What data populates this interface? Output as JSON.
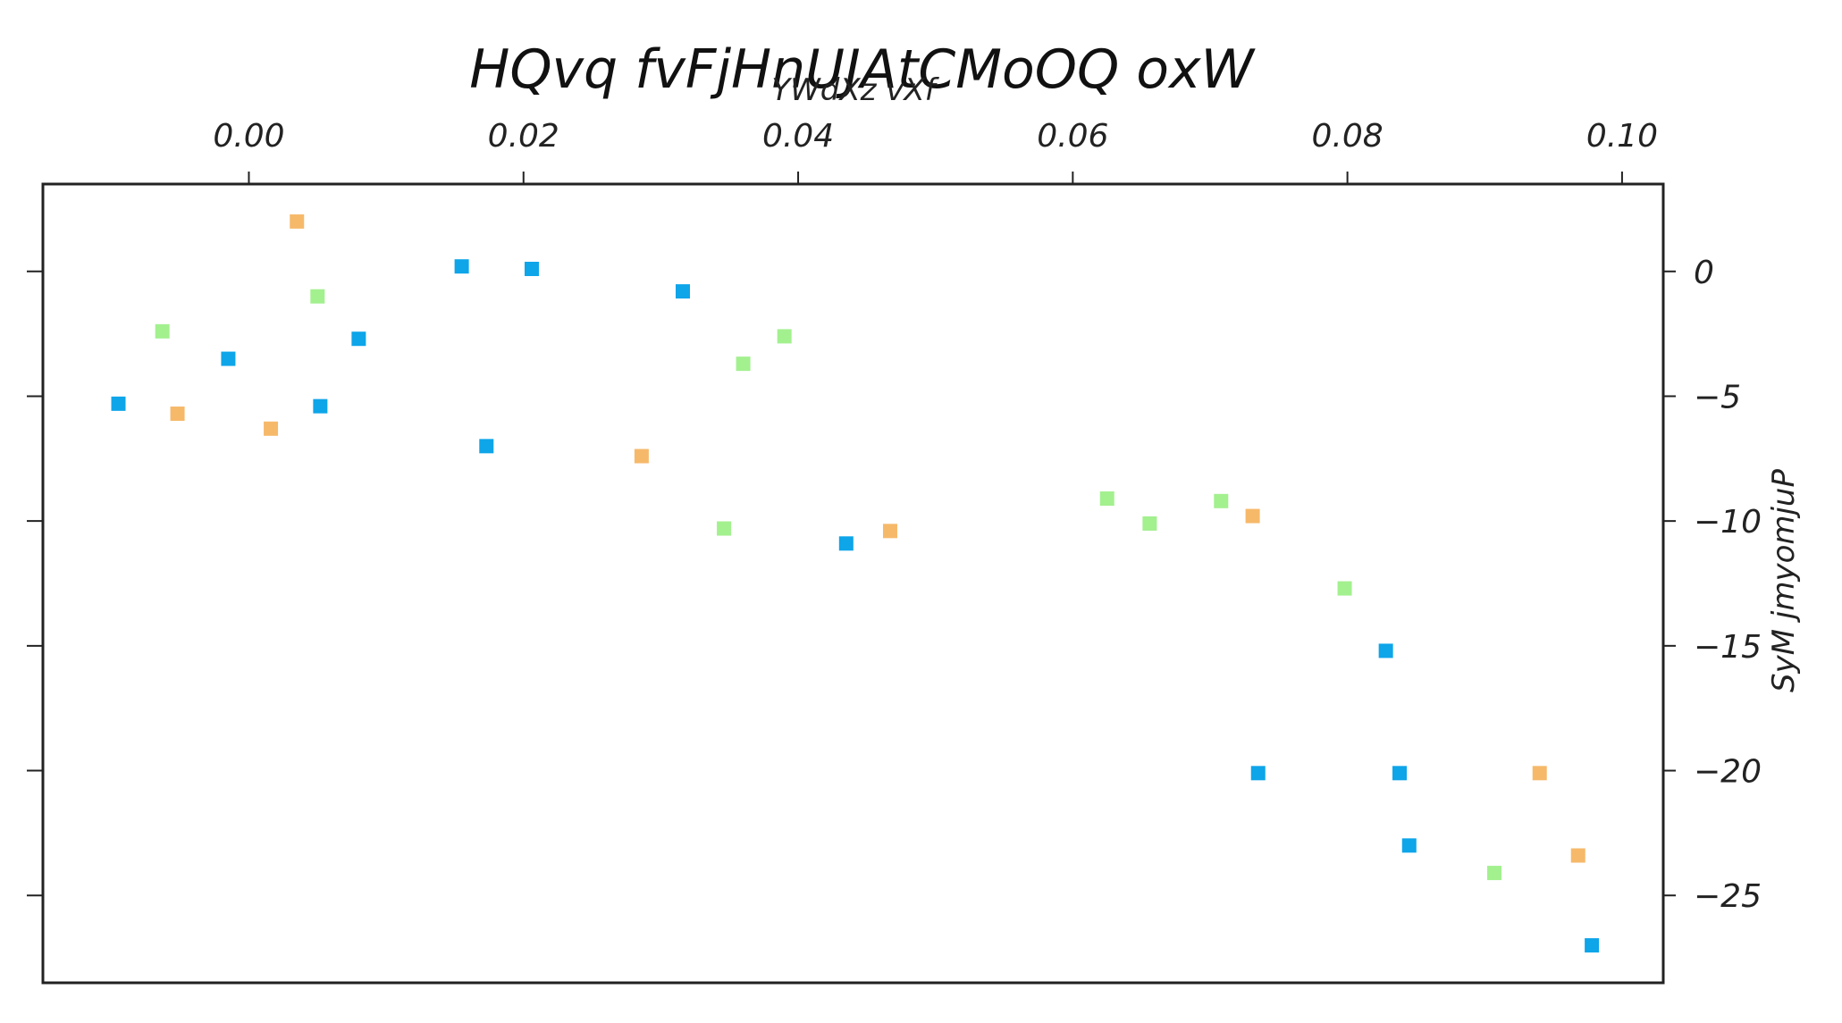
{
  "chart_data": {
    "type": "scatter",
    "title": "HQvq fvFjHnUJAtCMoOQ oxW",
    "xlabel": "YWdXz vXf",
    "ylabel": "SyM jmyomjuP",
    "xlim": [
      -0.015,
      0.103
    ],
    "ylim": [
      -28.5,
      3.5
    ],
    "x_ticks": [
      0.0,
      0.02,
      0.04,
      0.06,
      0.08,
      0.1
    ],
    "x_tick_labels": [
      "0.00",
      "0.02",
      "0.04",
      "0.06",
      "0.08",
      "0.10"
    ],
    "y_ticks": [
      0,
      -5,
      -10,
      -15,
      -20,
      -25
    ],
    "y_tick_labels": [
      "0",
      "−5",
      "−10",
      "−15",
      "−20",
      "−25"
    ],
    "x_axis_position": "top",
    "y_axis_position": "right",
    "grid": false,
    "legend": "none",
    "marker": "square",
    "series": [
      {
        "color": "#0ea5e9",
        "points": [
          [
            -0.0095,
            -5.3
          ],
          [
            -0.0015,
            -3.5
          ],
          [
            0.0052,
            -5.4
          ],
          [
            0.008,
            -2.7
          ],
          [
            0.0155,
            0.2
          ],
          [
            0.0173,
            -7.0
          ],
          [
            0.0206,
            0.1
          ],
          [
            0.0316,
            -0.8
          ],
          [
            0.0435,
            -10.9
          ],
          [
            0.0735,
            -20.1
          ],
          [
            0.0828,
            -15.2
          ],
          [
            0.0838,
            -20.1
          ],
          [
            0.0845,
            -23.0
          ],
          [
            0.0978,
            -27.0
          ]
        ]
      },
      {
        "color": "#f6b96a",
        "points": [
          [
            -0.0052,
            -5.7
          ],
          [
            0.0016,
            -6.3
          ],
          [
            0.0035,
            2.0
          ],
          [
            0.0286,
            -7.4
          ],
          [
            0.0467,
            -10.4
          ],
          [
            0.0731,
            -9.8
          ],
          [
            0.094,
            -20.1
          ],
          [
            0.0968,
            -23.4
          ]
        ]
      },
      {
        "color": "#a3f08f",
        "points": [
          [
            -0.0063,
            -2.4
          ],
          [
            0.005,
            -1.0
          ],
          [
            0.0346,
            -10.3
          ],
          [
            0.036,
            -3.7
          ],
          [
            0.039,
            -2.6
          ],
          [
            0.0625,
            -9.1
          ],
          [
            0.0656,
            -10.1
          ],
          [
            0.0708,
            -9.2
          ],
          [
            0.0798,
            -12.7
          ],
          [
            0.0907,
            -24.1
          ]
        ]
      }
    ]
  }
}
